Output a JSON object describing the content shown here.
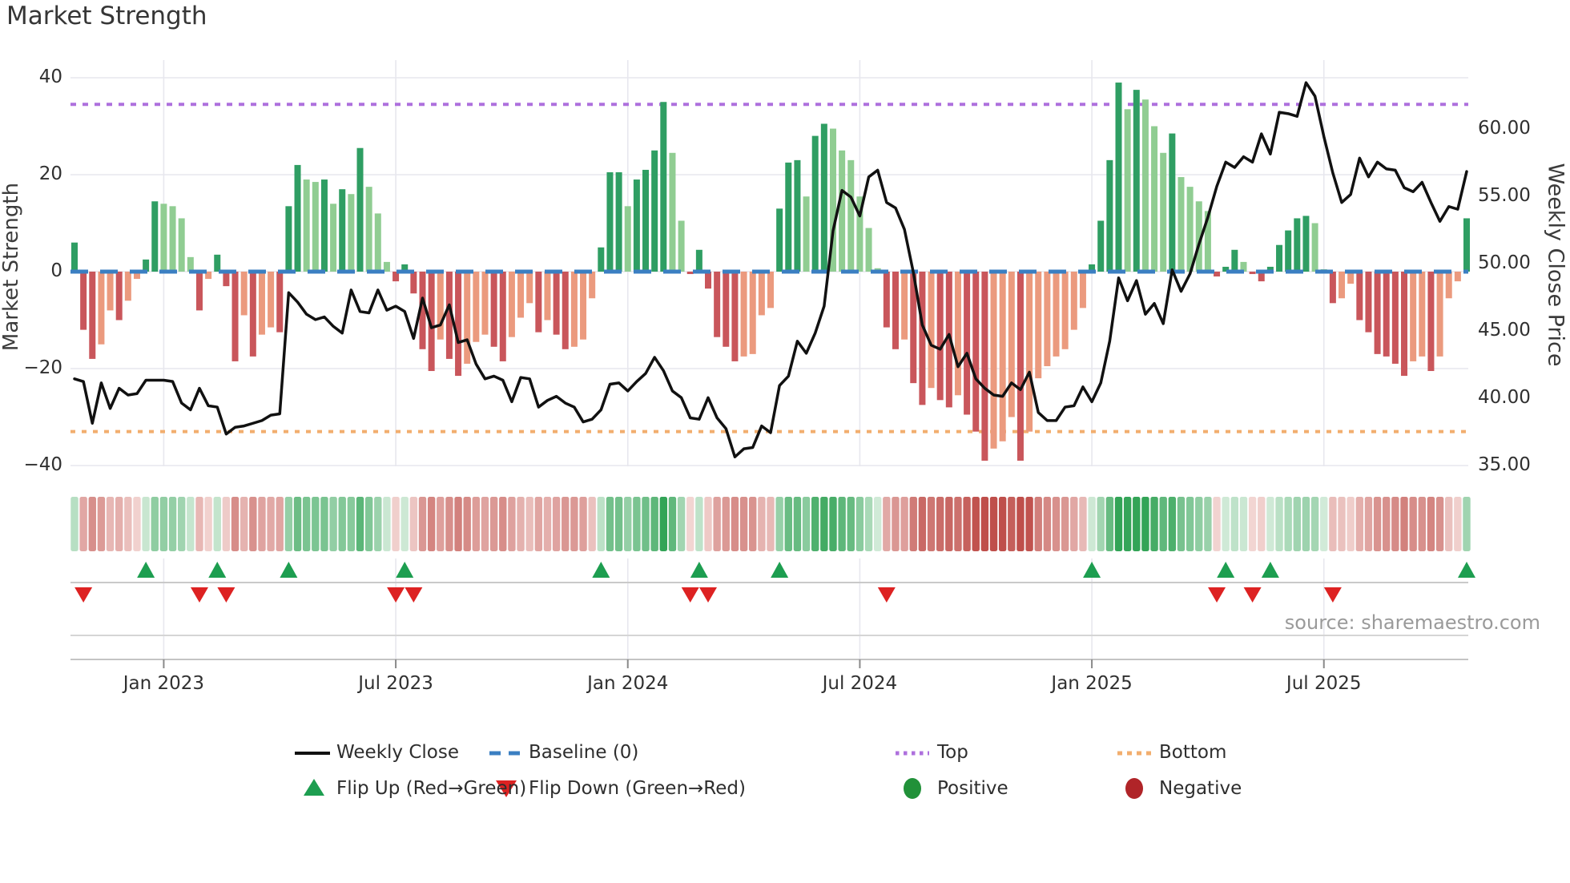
{
  "title": "Market Strength",
  "axes": {
    "y_left_title": "Market Strength",
    "y_right_title": "Weekly Close Price",
    "y_left_ticks": [
      "40",
      "20",
      "0",
      "−20",
      "−40"
    ],
    "y_left_tick_values": [
      40,
      20,
      0,
      -20,
      -40
    ],
    "y_right_ticks": [
      "60.00",
      "55.00",
      "50.00",
      "45.00",
      "40.00",
      "35.00"
    ],
    "y_right_tick_values": [
      60,
      55,
      50,
      45,
      40,
      35
    ],
    "x_tick_labels": [
      "Jan 2023",
      "Jul 2023",
      "Jan 2024",
      "Jul 2024",
      "Jan 2025",
      "Jul 2025"
    ],
    "x_tick_indices": [
      10,
      36,
      62,
      88,
      114,
      140
    ]
  },
  "source": "source: sharemaestro.com",
  "legend": {
    "weekly_close": "Weekly Close",
    "baseline": "Baseline (0)",
    "top": "Top",
    "bottom": "Bottom",
    "flip_up": "Flip Up (Red→Green)",
    "flip_down": "Flip Down (Green→Red)",
    "positive": "Positive",
    "negative": "Negative"
  },
  "colors": {
    "bar_pos_strong": "#2f9e63",
    "bar_pos_weak": "#90cd92",
    "bar_neg_strong": "#c9565b",
    "bar_neg_weak": "#eb9a7e",
    "line": "#111111",
    "baseline": "#3b7fc2",
    "top_line": "#ae70dd",
    "bottom_line": "#f2ae6e",
    "flip_up": "#1d9e50",
    "flip_down": "#dd2222",
    "positive_dot": "#219139",
    "negative_dot": "#b02428",
    "heat_pos": "#33a457",
    "heat_neg": "#bf4f4b",
    "grid": "#e7e7ee",
    "spine": "#c9c9c9"
  },
  "chart_data": {
    "type": "bar",
    "title": "Market Strength",
    "x_unit": "weeks (Oct 2022 – Oct 2025)",
    "left_axis_range": [
      -43.5,
      43.5
    ],
    "right_axis_range": [
      34.5,
      65
    ],
    "top_threshold": 34.5,
    "baseline_value": 0,
    "bottom_threshold": -33,
    "grid": true,
    "legend_position": "bottom",
    "series": [
      {
        "name": "Market Strength",
        "type": "bar",
        "axis": "left",
        "values": [
          6,
          -12,
          -18,
          -15,
          -8,
          -10,
          -6,
          -1.5,
          2.5,
          14.5,
          14,
          13.5,
          11,
          3,
          -8,
          -1.5,
          3.5,
          -3,
          -18.5,
          -9,
          -17.5,
          -13,
          -11.5,
          -12.5,
          13.5,
          22,
          19,
          18.5,
          19,
          14,
          17,
          16,
          25.5,
          17.5,
          12,
          2,
          -2,
          1.5,
          -4.5,
          -16,
          -20.5,
          -14,
          -18,
          -21.5,
          -19,
          -14.5,
          -13,
          -15.5,
          -18.5,
          -13.5,
          -9.5,
          -6.5,
          -12.5,
          -10,
          -13,
          -16,
          -15.5,
          -14,
          -5.5,
          5,
          20.5,
          20.5,
          13.5,
          19,
          21,
          25,
          35,
          24.5,
          10.5,
          -0.5,
          4.5,
          -3.5,
          -13.5,
          -15.5,
          -18.5,
          -17.5,
          -17,
          -9,
          -7.5,
          13,
          22.5,
          23,
          15.5,
          28,
          30.5,
          29.5,
          25,
          23,
          15.5,
          9,
          0.7,
          -11.5,
          -16,
          -14,
          -23,
          -27.5,
          -24,
          -26.5,
          -28,
          -25.5,
          -29.5,
          -33,
          -39,
          -36.5,
          -35,
          -30,
          -39,
          -33,
          -22,
          -19.5,
          -17.5,
          -16,
          -12,
          -7.5,
          1.5,
          10.5,
          23,
          39,
          33.5,
          37.5,
          35.5,
          30,
          24.5,
          28.5,
          19.5,
          17.5,
          14.5,
          12.5,
          -1,
          1,
          4.5,
          2,
          -0.5,
          -2,
          1,
          5.5,
          8.5,
          11,
          11.5,
          10,
          0.5,
          -6.5,
          -5.5,
          -2.5,
          -10,
          -12.5,
          -17,
          -17.5,
          -19,
          -21.5,
          -18.5,
          -17.5,
          -20.5,
          -17.5,
          -5.5,
          -2,
          11
        ]
      },
      {
        "name": "Weekly Close",
        "type": "line",
        "axis": "right",
        "values": [
          41.5,
          41.3,
          38.2,
          41.2,
          39.3,
          40.8,
          40.3,
          40.4,
          41.4,
          41.4,
          41.4,
          41.3,
          39.7,
          39.2,
          40.8,
          39.5,
          39.4,
          37.4,
          37.9,
          38.0,
          38.2,
          38.4,
          38.8,
          38.9,
          47.9,
          47.2,
          46.3,
          45.9,
          46.1,
          45.4,
          44.9,
          48.1,
          46.5,
          46.4,
          48.1,
          46.6,
          46.9,
          46.5,
          44.5,
          47.5,
          45.3,
          45.5,
          47.0,
          44.2,
          44.4,
          42.6,
          41.5,
          41.7,
          41.4,
          39.8,
          41.6,
          41.5,
          39.4,
          39.9,
          40.2,
          39.7,
          39.4,
          38.3,
          38.5,
          39.2,
          41.1,
          41.2,
          40.6,
          41.3,
          41.9,
          43.1,
          42.1,
          40.6,
          40.1,
          38.6,
          38.5,
          40.1,
          38.6,
          37.8,
          35.7,
          36.3,
          36.4,
          38.0,
          37.5,
          41.0,
          41.7,
          44.3,
          43.4,
          44.9,
          46.9,
          52.5,
          55.5,
          55.0,
          53.6,
          56.5,
          57.0,
          54.6,
          54.2,
          52.6,
          49.4,
          45.5,
          44.0,
          43.7,
          44.8,
          42.4,
          43.4,
          41.5,
          40.8,
          40.3,
          40.2,
          41.2,
          40.7,
          42.0,
          39.0,
          38.4,
          38.4,
          39.4,
          39.5,
          40.9,
          39.8,
          41.2,
          44.3,
          49.0,
          47.3,
          48.8,
          46.3,
          47.1,
          45.6,
          49.6,
          48.0,
          49.3,
          51.5,
          53.5,
          55.8,
          57.6,
          57.2,
          58.0,
          57.6,
          59.7,
          58.2,
          61.3,
          61.2,
          61.0,
          63.5,
          62.5,
          59.5,
          56.8,
          54.6,
          55.2,
          57.9,
          56.5,
          57.6,
          57.1,
          57.0,
          55.7,
          55.4,
          56.1,
          54.6,
          53.2,
          54.3,
          54.1,
          56.9
        ]
      }
    ],
    "annotations": {
      "flip_up_rule": "bar sign changes negative to positive",
      "flip_down_rule": "bar sign changes positive to negative"
    }
  }
}
